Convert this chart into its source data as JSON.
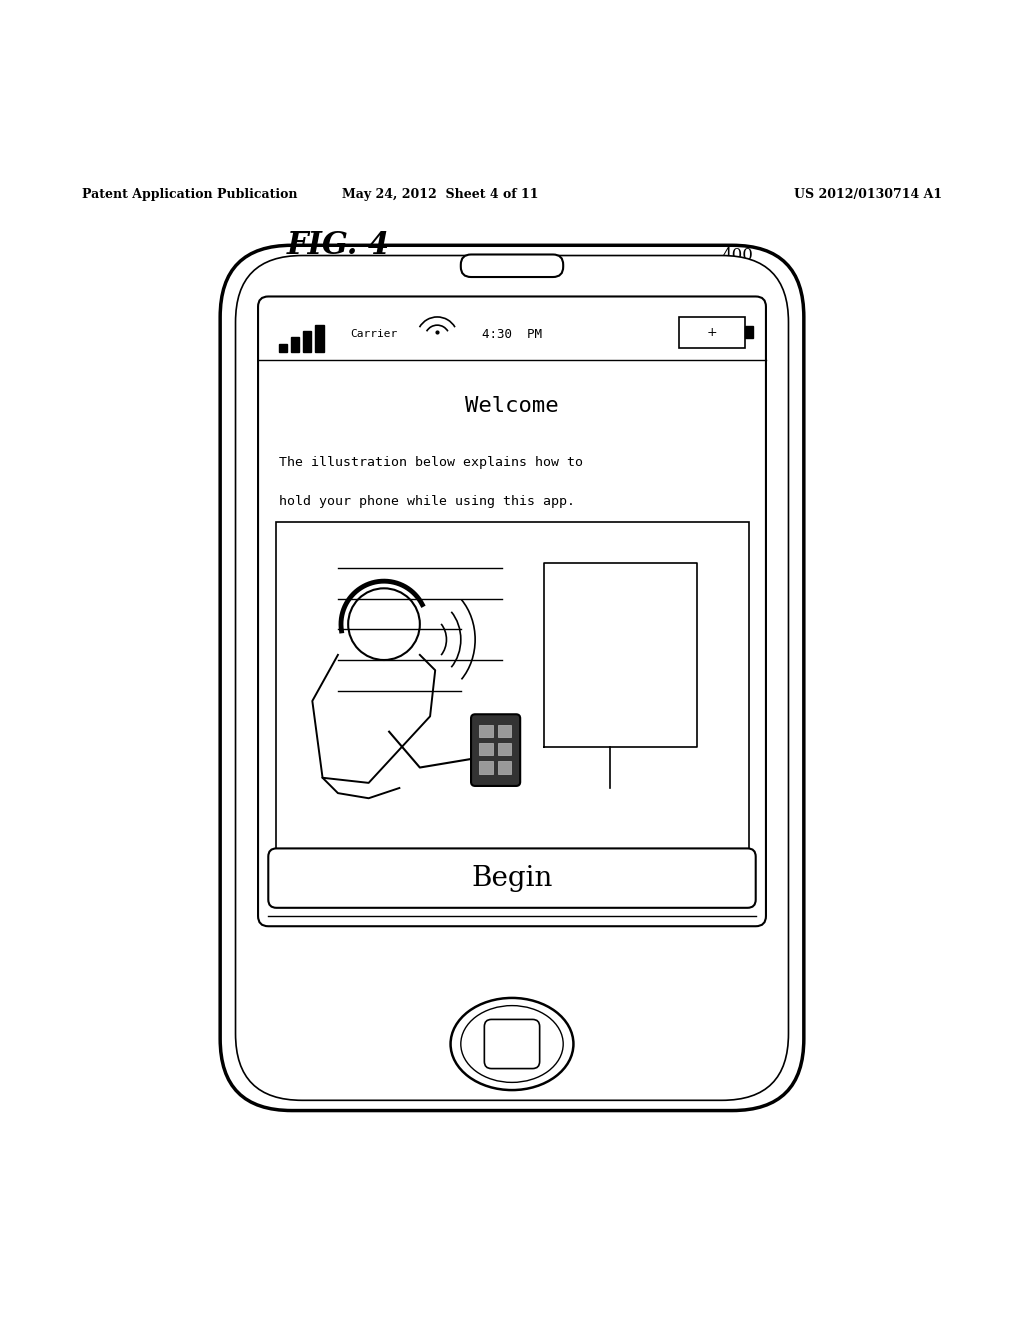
{
  "bg_color": "#ffffff",
  "header_left": "Patent Application Publication",
  "header_mid": "May 24, 2012  Sheet 4 of 11",
  "header_right": "US 2012/0130714 A1",
  "fig_label": "FIG. 4",
  "ref_num": "400",
  "welcome_text": "Welcome",
  "body_text_line1": "The illustration below explains how to",
  "body_text_line2": "hold your phone while using this app.",
  "begin_text": "Begin",
  "carrier_text": "Carrier",
  "time_text": "4:30  PM"
}
